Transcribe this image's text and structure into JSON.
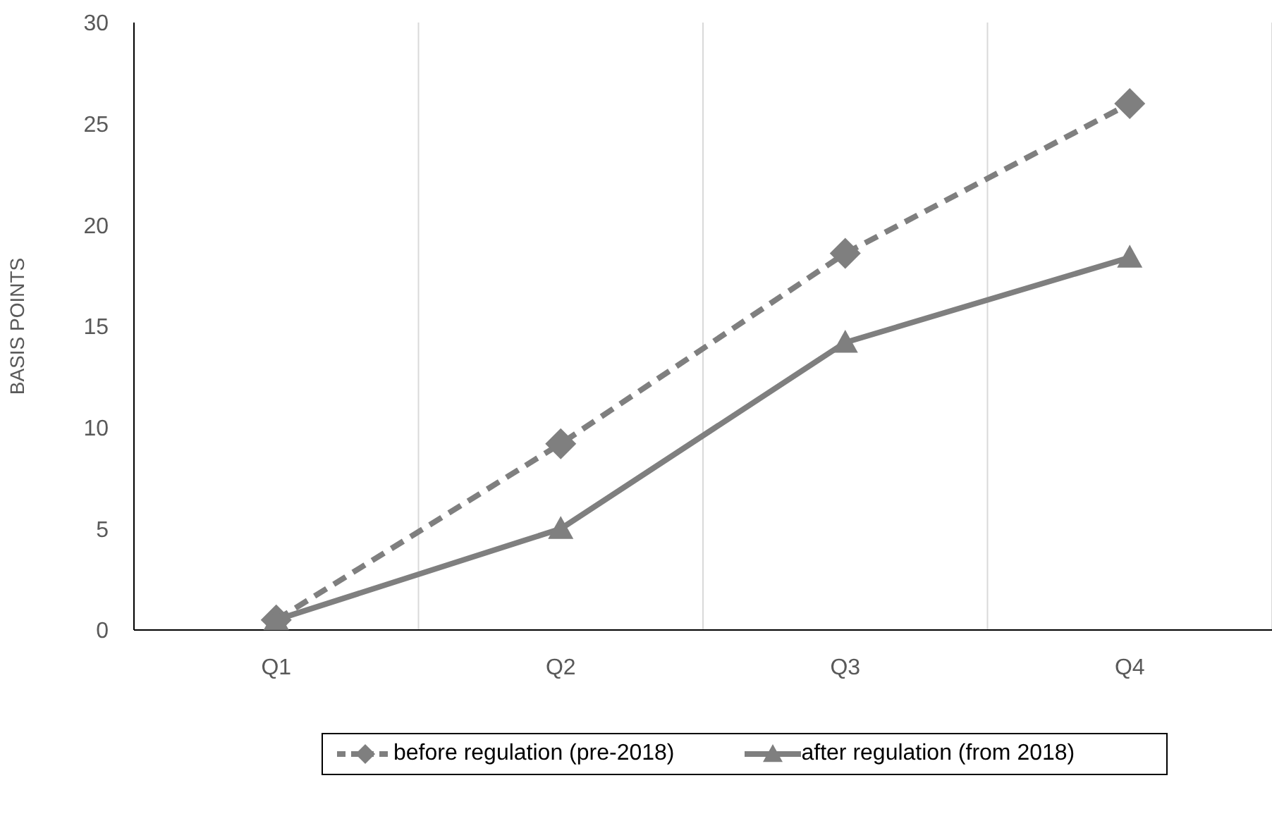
{
  "chart_data": {
    "type": "line",
    "ylabel": "BASIS POINTS",
    "categories": [
      "Q1",
      "Q2",
      "Q3",
      "Q4"
    ],
    "series": [
      {
        "name": "before regulation (pre-2018)",
        "color": "#7f7f7f",
        "values": [
          0.5,
          9.2,
          18.6,
          26.0
        ],
        "marker": "diamond",
        "line_style": "dashed"
      },
      {
        "name": "after regulation (from 2018)",
        "color": "#7f7f7f",
        "values": [
          0.5,
          5.0,
          14.2,
          18.4
        ],
        "marker": "triangle",
        "line_style": "solid"
      }
    ],
    "ylim": [
      0,
      30
    ],
    "yticks": [
      0,
      5,
      10,
      15,
      20,
      25,
      30
    ],
    "grid": "x",
    "legend": "bottom"
  }
}
